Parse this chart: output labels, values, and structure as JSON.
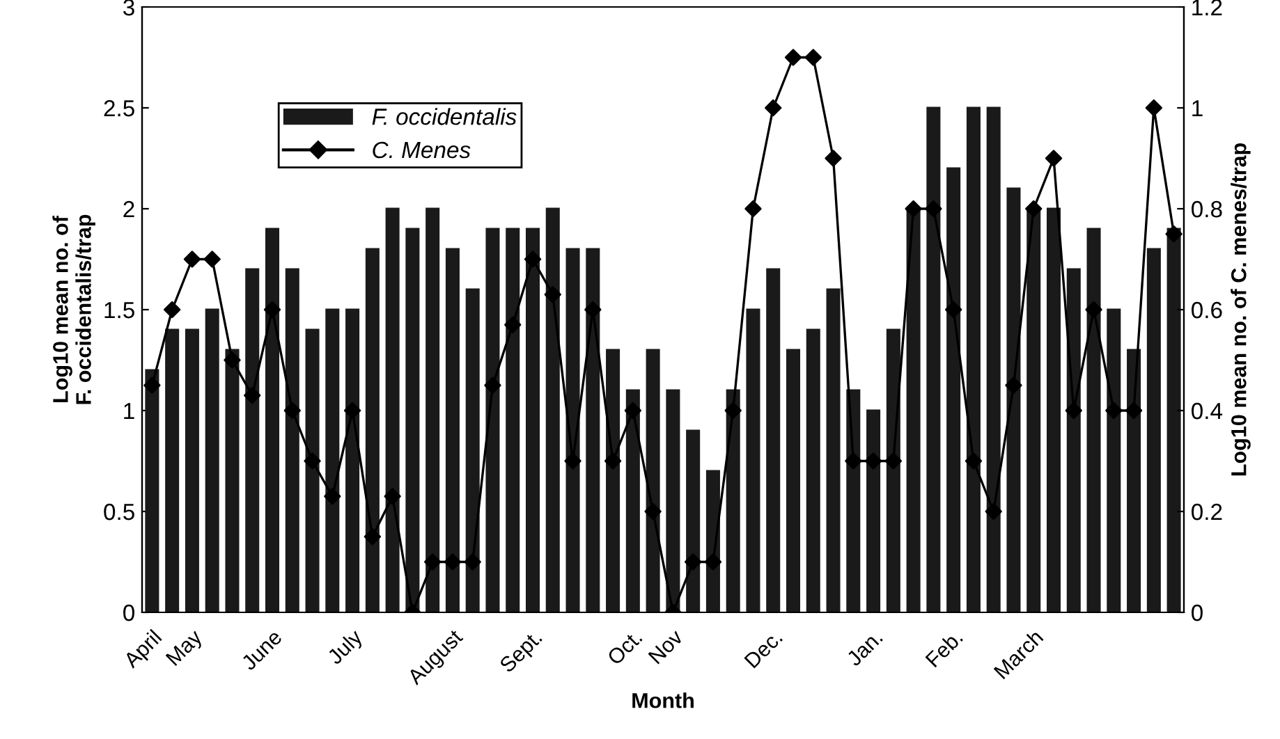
{
  "chart_data": {
    "type": "bar",
    "xlabel": "Month",
    "ylabel": "Log10 mean no. of\nF. occidentalis/trap",
    "y2label": "Log10 mean no. of C. menes/trap",
    "categories": [
      "April",
      null,
      "May",
      null,
      null,
      null,
      "June",
      null,
      null,
      null,
      "July",
      null,
      null,
      null,
      null,
      "August",
      null,
      null,
      null,
      "Sept.",
      null,
      null,
      null,
      null,
      "Oct.",
      null,
      "Nov",
      null,
      null,
      null,
      null,
      "Dec.",
      null,
      null,
      null,
      null,
      "Jan.",
      null,
      null,
      null,
      "Feb.",
      null,
      null,
      null,
      "March",
      null,
      null,
      null,
      null,
      null,
      null,
      null
    ],
    "series": [
      {
        "name": "F. occidentalis",
        "color": "#1a1a1a",
        "values": [
          1.2,
          1.4,
          1.4,
          1.5,
          1.3,
          1.7,
          1.9,
          1.7,
          1.4,
          1.5,
          1.5,
          1.8,
          2.0,
          1.9,
          2.0,
          1.8,
          1.6,
          1.9,
          1.9,
          1.9,
          2.0,
          1.8,
          1.8,
          1.3,
          1.1,
          1.3,
          1.1,
          0.9,
          0.7,
          1.1,
          1.5,
          1.7,
          1.3,
          1.4,
          1.6,
          1.1,
          1.0,
          1.4,
          2.0,
          2.5,
          2.2,
          2.5,
          2.5,
          2.1,
          2.0,
          2.0,
          1.7,
          1.9,
          1.5,
          1.3,
          1.8,
          1.9
        ]
      },
      {
        "name": "C. Menes",
        "type": "line",
        "axis": "y2",
        "color": "#000000",
        "marker": "diamond",
        "values": [
          0.45,
          0.6,
          0.7,
          0.7,
          0.5,
          0.43,
          0.6,
          0.4,
          0.3,
          0.23,
          0.4,
          0.15,
          0.23,
          0.0,
          0.1,
          0.1,
          0.1,
          0.45,
          0.57,
          0.7,
          0.63,
          0.3,
          0.6,
          0.3,
          0.4,
          0.2,
          0.0,
          0.1,
          0.1,
          0.4,
          0.8,
          1.0,
          1.1,
          1.1,
          0.9,
          0.3,
          0.3,
          0.3,
          0.8,
          0.8,
          0.6,
          0.3,
          0.2,
          0.45,
          0.8,
          0.9,
          0.4,
          0.6,
          0.4,
          0.4,
          1.0,
          0.75
        ]
      }
    ],
    "ylim": [
      0,
      3
    ],
    "yticks": [
      0,
      0.5,
      1,
      1.5,
      2,
      2.5,
      3
    ],
    "y2lim": [
      0,
      1.2
    ],
    "y2ticks": [
      0,
      0.2,
      0.4,
      0.6,
      0.8,
      1,
      1.2
    ],
    "legend": "top left",
    "grid": false
  }
}
